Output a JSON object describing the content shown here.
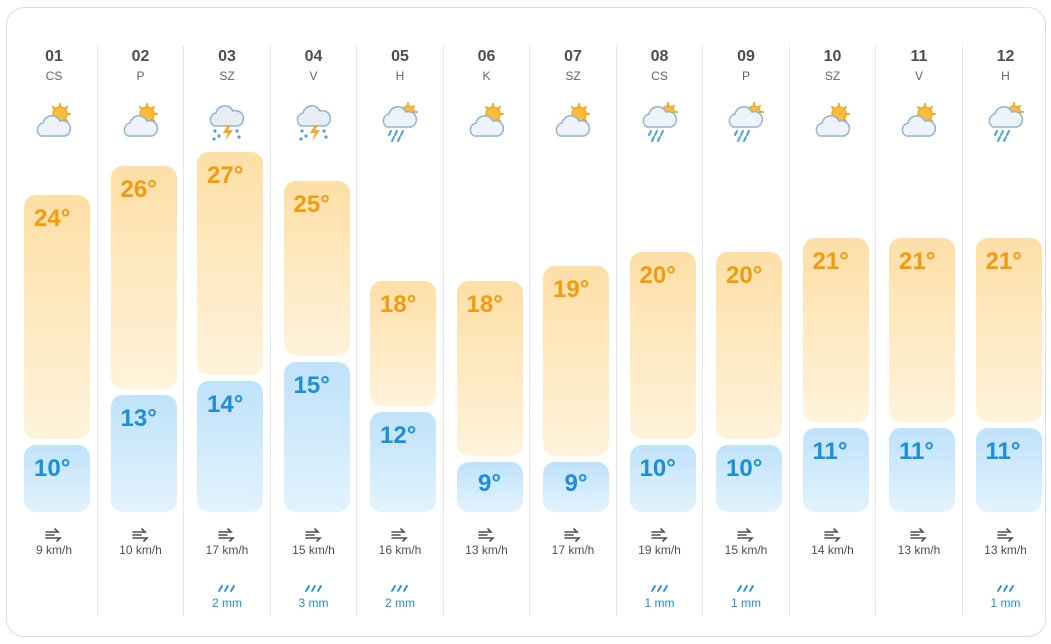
{
  "days": [
    {
      "date": "01",
      "dow": "CS",
      "icon": "partly-cloudy-icon",
      "max": "24°",
      "min": "10°",
      "maxv": 24,
      "minv": 10,
      "wind": "9 km/h",
      "rain": ""
    },
    {
      "date": "02",
      "dow": "P",
      "icon": "partly-cloudy-icon",
      "max": "26°",
      "min": "13°",
      "maxv": 26,
      "minv": 13,
      "wind": "10 km/h",
      "rain": ""
    },
    {
      "date": "03",
      "dow": "SZ",
      "icon": "thunderstorm-icon",
      "max": "27°",
      "min": "14°",
      "maxv": 27,
      "minv": 14,
      "wind": "17 km/h",
      "rain": "2 mm"
    },
    {
      "date": "04",
      "dow": "V",
      "icon": "thunderstorm-icon",
      "max": "25°",
      "min": "15°",
      "maxv": 25,
      "minv": 15,
      "wind": "15 km/h",
      "rain": "3 mm"
    },
    {
      "date": "05",
      "dow": "H",
      "icon": "rain-sun-icon",
      "max": "18°",
      "min": "12°",
      "maxv": 18,
      "minv": 12,
      "wind": "16 km/h",
      "rain": "2 mm"
    },
    {
      "date": "06",
      "dow": "K",
      "icon": "partly-cloudy-icon",
      "max": "18°",
      "min": "9°",
      "maxv": 18,
      "minv": 9,
      "wind": "13 km/h",
      "rain": ""
    },
    {
      "date": "07",
      "dow": "SZ",
      "icon": "partly-cloudy-icon",
      "max": "19°",
      "min": "9°",
      "maxv": 19,
      "minv": 9,
      "wind": "17 km/h",
      "rain": ""
    },
    {
      "date": "08",
      "dow": "CS",
      "icon": "rain-sun-icon",
      "max": "20°",
      "min": "10°",
      "maxv": 20,
      "minv": 10,
      "wind": "19 km/h",
      "rain": "1 mm"
    },
    {
      "date": "09",
      "dow": "P",
      "icon": "rain-sun-icon",
      "max": "20°",
      "min": "10°",
      "maxv": 20,
      "minv": 10,
      "wind": "15 km/h",
      "rain": "1 mm"
    },
    {
      "date": "10",
      "dow": "SZ",
      "icon": "partly-cloudy-icon",
      "max": "21°",
      "min": "11°",
      "maxv": 21,
      "minv": 11,
      "wind": "14 km/h",
      "rain": ""
    },
    {
      "date": "11",
      "dow": "V",
      "icon": "partly-cloudy-icon",
      "max": "21°",
      "min": "11°",
      "maxv": 21,
      "minv": 11,
      "wind": "13 km/h",
      "rain": ""
    },
    {
      "date": "12",
      "dow": "H",
      "icon": "rain-sun-icon",
      "max": "21°",
      "min": "11°",
      "maxv": 21,
      "minv": 11,
      "wind": "13 km/h",
      "rain": "1 mm"
    }
  ],
  "colors": {
    "max": "#f39a0f",
    "min": "#1c8fd8"
  }
}
